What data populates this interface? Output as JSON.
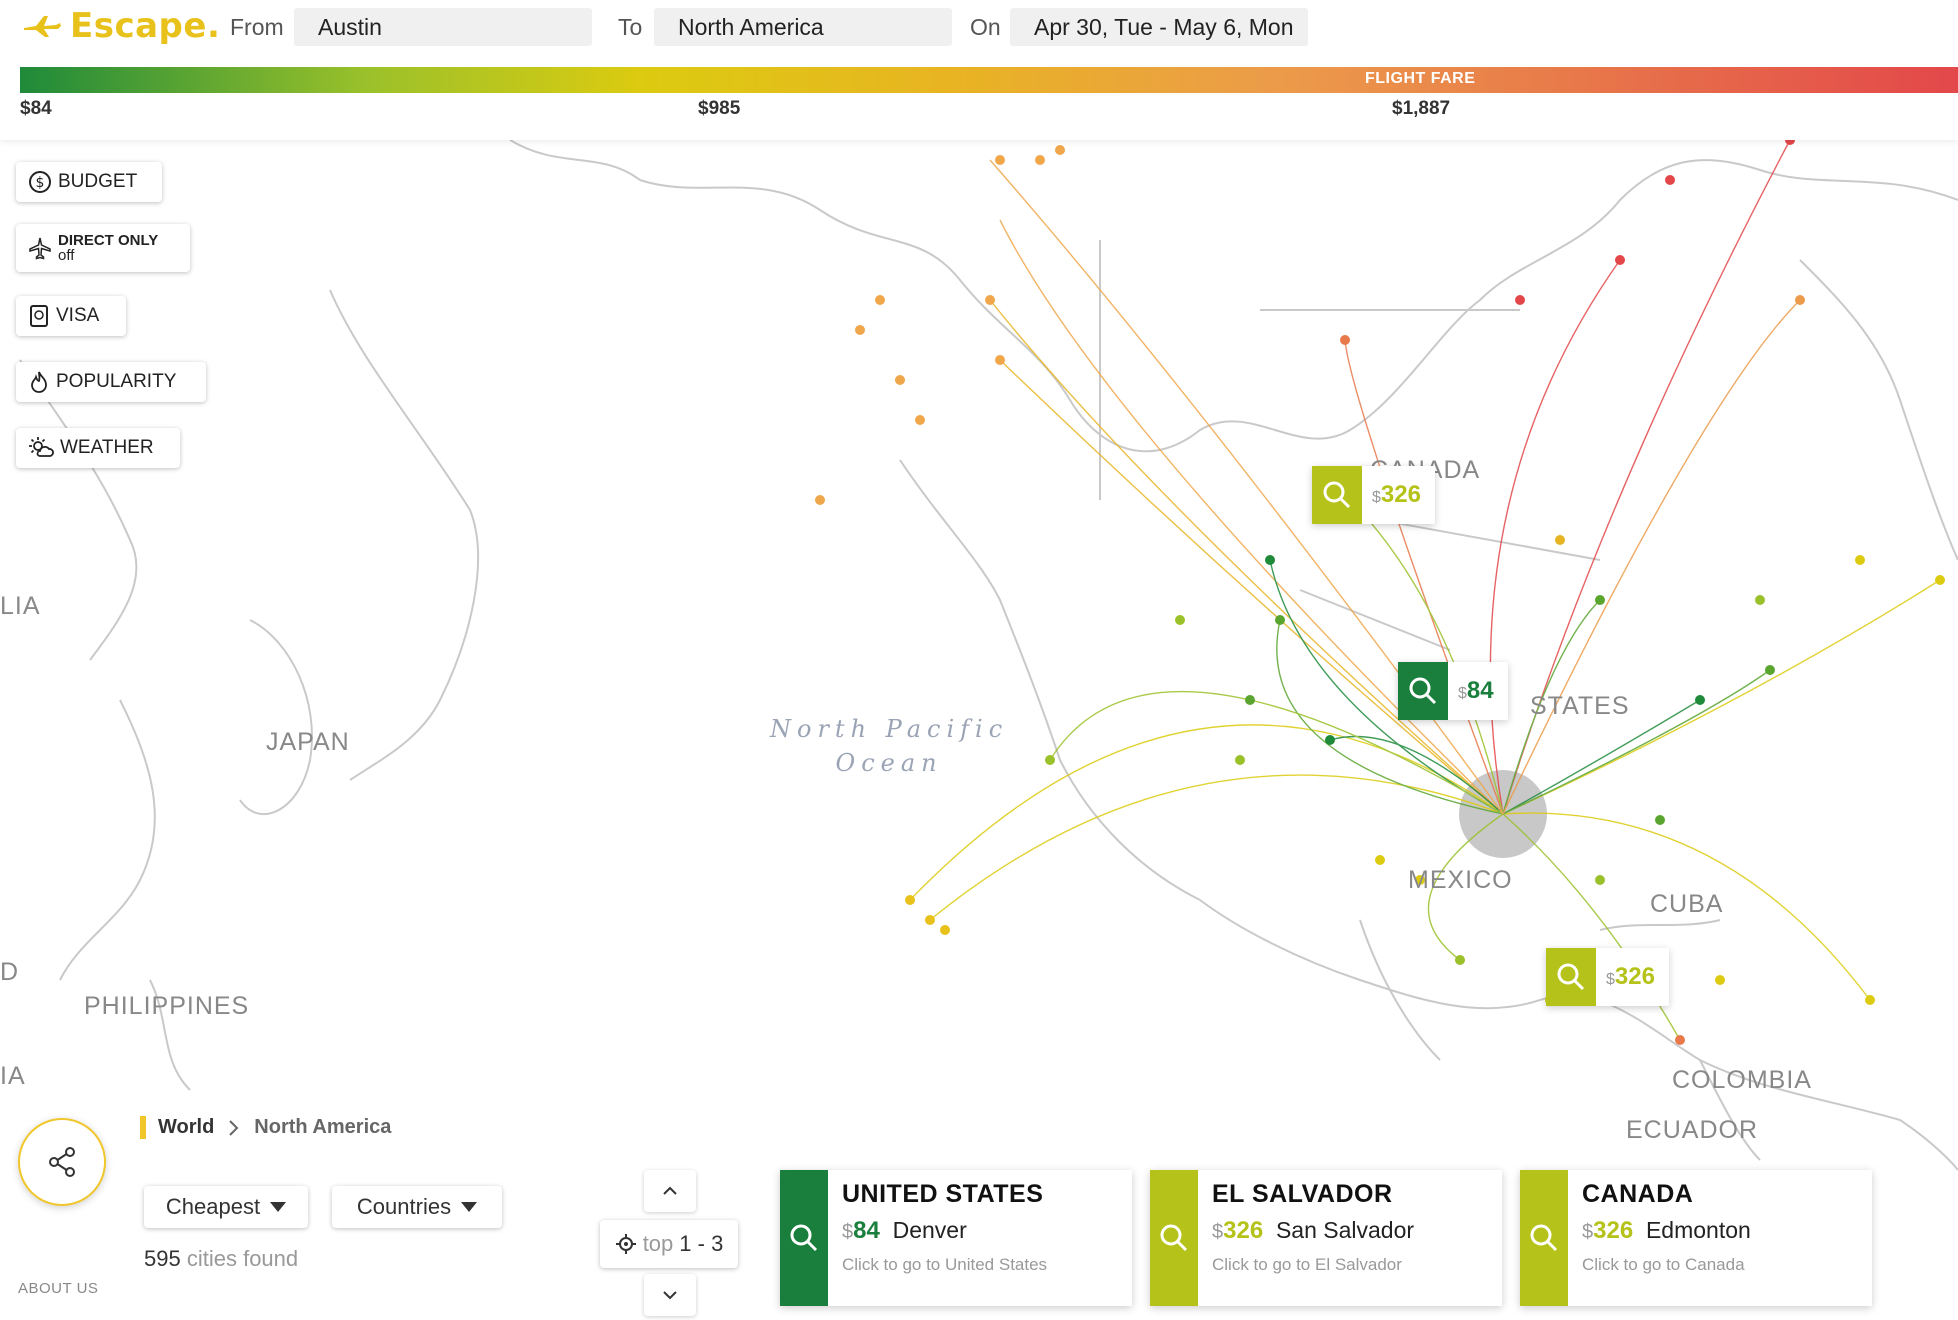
{
  "header": {
    "logo_text": "Escape.",
    "from_label": "From",
    "from_value": "Austin",
    "to_label": "To",
    "to_value": "North America",
    "on_label": "On",
    "on_value": "Apr 30, Tue - May 6, Mon"
  },
  "fare_scale": {
    "title": "FLIGHT FARE",
    "min_label": "$84",
    "mid_label": "$985",
    "max_label": "$1,887",
    "colors": [
      "#1f8a3a",
      "#9bc12a",
      "#dccb10",
      "#e8b422",
      "#ec9b4a",
      "#e3474a"
    ]
  },
  "filters": {
    "budget": "BUDGET",
    "direct_only": "DIRECT ONLY",
    "direct_only_state": "off",
    "visa": "VISA",
    "popularity": "POPULARITY",
    "weather": "WEATHER"
  },
  "map": {
    "ocean_line1": "North Pacific",
    "ocean_line2": "Ocean",
    "labels": {
      "lia": "LIA",
      "japan": "JAPAN",
      "philippines": "PHILIPPINES",
      "d": "D",
      "ia": "IA",
      "canada": "CANADA",
      "states": "STATES",
      "mexico": "MEXICO",
      "cuba": "CUBA",
      "colombia": "COLOMBIA",
      "ecuador": "ECUADOR"
    },
    "pins": [
      {
        "dollar": "$",
        "amount": "326",
        "color": "#b5c21a"
      },
      {
        "dollar": "$",
        "amount": "84",
        "color": "#1a7f3c"
      },
      {
        "dollar": "$",
        "amount": "326",
        "color": "#b5c21a"
      }
    ]
  },
  "breadcrumb": {
    "world": "World",
    "current": "North America"
  },
  "sort": {
    "order": "Cheapest",
    "group": "Countries"
  },
  "results": {
    "count": "595",
    "suffix": "cities found"
  },
  "pager": {
    "prefix": "top",
    "range": "1 - 3"
  },
  "cards": [
    {
      "country": "UNITED STATES",
      "dollar": "$",
      "price": "84",
      "city": "Denver",
      "hint": "Click to go to United States",
      "color": "#1a7f3c"
    },
    {
      "country": "EL SALVADOR",
      "dollar": "$",
      "price": "326",
      "city": "San Salvador",
      "hint": "Click to go to El Salvador",
      "color": "#b5c21a"
    },
    {
      "country": "CANADA",
      "dollar": "$",
      "price": "326",
      "city": "Edmonton",
      "hint": "Click to go to Canada",
      "color": "#b5c21a"
    }
  ],
  "footer": {
    "about": "ABOUT US"
  }
}
